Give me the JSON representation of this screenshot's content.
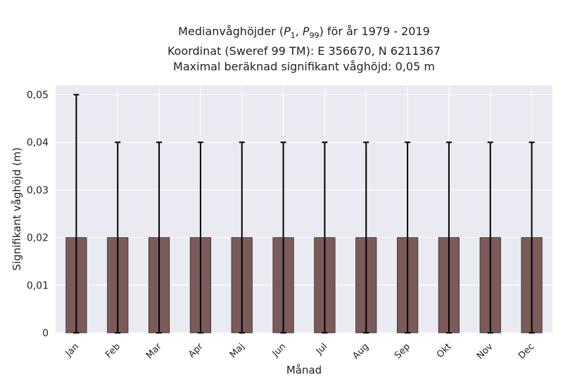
{
  "chart_data": {
    "type": "bar",
    "title_lines": [
      "Medianvåghöjder (P1, P99) för år 1979 - 2019",
      "Koordinat (Sweref 99 TM): E 356670, N 6211367",
      "Maximal beräknad signifikant våghöjd: 0,05 m"
    ],
    "xlabel": "Månad",
    "ylabel": "Signifikant våghöjd (m)",
    "categories": [
      "Jan",
      "Feb",
      "Mar",
      "Apr",
      "Maj",
      "Jun",
      "Jul",
      "Aug",
      "Sep",
      "Okt",
      "Nov",
      "Dec"
    ],
    "values": [
      0.02,
      0.02,
      0.02,
      0.02,
      0.02,
      0.02,
      0.02,
      0.02,
      0.02,
      0.02,
      0.02,
      0.02
    ],
    "error_low": [
      0,
      0,
      0,
      0,
      0,
      0,
      0,
      0,
      0,
      0,
      0,
      0
    ],
    "error_high": [
      0.05,
      0.04,
      0.04,
      0.04,
      0.04,
      0.04,
      0.04,
      0.04,
      0.04,
      0.04,
      0.04,
      0.04
    ],
    "ylim": [
      0,
      0.052
    ],
    "yticks": [
      0,
      0.01,
      0.02,
      0.03,
      0.04,
      0.05
    ],
    "ytick_labels": [
      "0",
      "0,01",
      "0,02",
      "0,03",
      "0,04",
      "0,05"
    ],
    "grid": true,
    "colors": {
      "bar": "#7b5a5a",
      "bar_edge": "#3a2a2a",
      "errorbar": "#000000",
      "plot_bg": "#eaeaf2",
      "grid": "#ffffff"
    }
  }
}
